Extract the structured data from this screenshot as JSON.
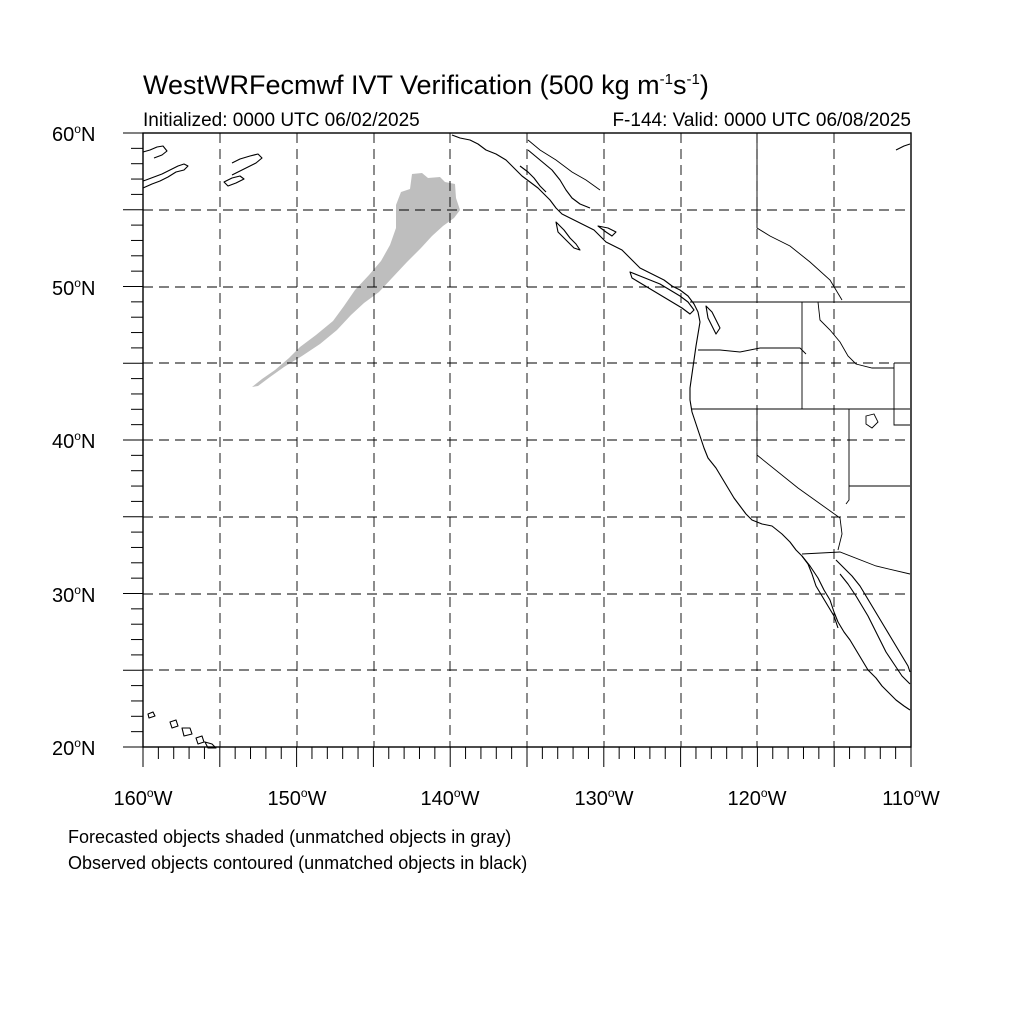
{
  "header": {
    "title_main": "WestWRFecmwf IVT Verification (500 kg m",
    "title_exp1": "-1",
    "title_mid": "s",
    "title_exp2": "-1",
    "title_end": ")",
    "initialized": "Initialized: 0000 UTC 06/02/2025",
    "valid": "F-144: Valid: 0000 UTC 06/08/2025"
  },
  "axes": {
    "lat_labels": [
      {
        "value": "60",
        "suffix": "N"
      },
      {
        "value": "50",
        "suffix": "N"
      },
      {
        "value": "40",
        "suffix": "N"
      },
      {
        "value": "30",
        "suffix": "N"
      },
      {
        "value": "20",
        "suffix": "N"
      }
    ],
    "lon_labels": [
      {
        "value": "160",
        "suffix": "W"
      },
      {
        "value": "150",
        "suffix": "W"
      },
      {
        "value": "140",
        "suffix": "W"
      },
      {
        "value": "130",
        "suffix": "W"
      },
      {
        "value": "120",
        "suffix": "W"
      },
      {
        "value": "110",
        "suffix": "W"
      }
    ],
    "degree_symbol": "o"
  },
  "footer": {
    "line1": "Forecasted objects shaded (unmatched objects in gray)",
    "line2": "Observed objects contoured (unmatched objects in black)"
  },
  "colors": {
    "forecast_unmatched": "#bebebe",
    "coastline": "#000000",
    "grid": "#000000"
  },
  "map": {
    "lon_range": [
      -160,
      -110
    ],
    "lat_range": [
      20,
      60
    ],
    "gridlines": "dashed every 5 degrees"
  }
}
